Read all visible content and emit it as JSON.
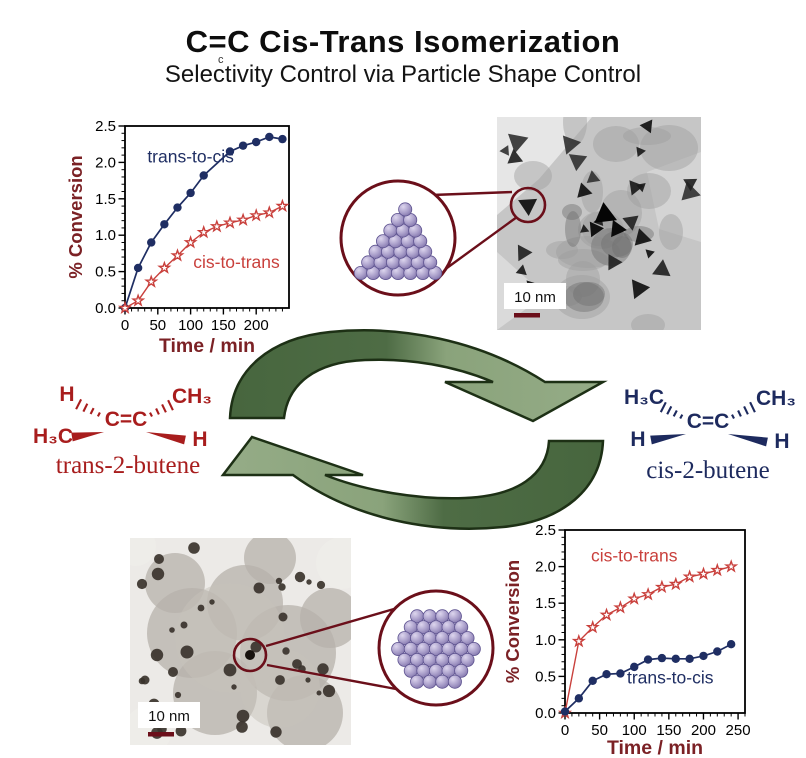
{
  "header": {
    "title": "C=C Cis-Trans Isomerization",
    "subtitle": "Selectivity Control via Particle Shape Control",
    "subtitle_mark": "c"
  },
  "colors": {
    "axis_label": "#7b2125",
    "navy": "#1f2e63",
    "red": "#c9403c",
    "molecule_red": "#a81d1d",
    "molecule_navy": "#1d2a5e",
    "magnifier": "#6b0f1a",
    "arrow_dark": "#47663e",
    "arrow_light": "#95ac87",
    "arrow_outline": "#1d3015",
    "sphere_fill": "#a89dc9",
    "sphere_edge": "#5e5390"
  },
  "molecules": {
    "trans": {
      "name": "trans-2-butene",
      "atoms": {
        "top_left": "H",
        "bottom_left": "H₃C",
        "center": "C=C",
        "top_right": "CH₃",
        "bottom_right": "H"
      }
    },
    "cis": {
      "name": "cis-2-butene",
      "atoms": {
        "top_left": "H₃C",
        "bottom_left": "H",
        "center": "C=C",
        "top_right": "CH₃",
        "bottom_right": "H"
      }
    }
  },
  "tem_images": [
    {
      "position": "top-right",
      "scale_label": "10 nm",
      "particles": "triangular"
    },
    {
      "position": "bottom-left",
      "scale_label": "10 nm",
      "particles": "spherical"
    }
  ],
  "nanoparticle_models": [
    {
      "position": "top",
      "shape": "tetrahedron"
    },
    {
      "position": "bottom",
      "shape": "sphere"
    }
  ],
  "chart_data": [
    {
      "type": "line",
      "position": "top-left",
      "xlabel": "Time / min",
      "ylabel": "% Conversion",
      "xlim": [
        0,
        250
      ],
      "ylim": [
        0,
        2.5
      ],
      "xticks": [
        0,
        50,
        100,
        150,
        200
      ],
      "yticks": [
        0.0,
        0.5,
        1.0,
        1.5,
        2.0,
        2.5
      ],
      "x_minor_step": 10,
      "y_minor_step": 0.1,
      "grid": false,
      "series": [
        {
          "name": "trans-to-cis",
          "marker": "circle",
          "color": "#1f2e63",
          "x": [
            0,
            20,
            40,
            60,
            80,
            100,
            120,
            160,
            180,
            200,
            220,
            240
          ],
          "y": [
            0,
            0.55,
            0.9,
            1.15,
            1.38,
            1.58,
            1.82,
            2.15,
            2.23,
            2.28,
            2.35,
            2.32
          ],
          "label_at": [
            100,
            2.0
          ]
        },
        {
          "name": "cis-to-trans",
          "marker": "star",
          "color": "#c9403c",
          "x": [
            0,
            20,
            40,
            60,
            80,
            100,
            120,
            140,
            160,
            180,
            200,
            220,
            240
          ],
          "y": [
            0,
            0.1,
            0.36,
            0.55,
            0.72,
            0.9,
            1.04,
            1.12,
            1.17,
            1.21,
            1.27,
            1.31,
            1.4
          ],
          "label_at": [
            170,
            0.55
          ]
        }
      ]
    },
    {
      "type": "line",
      "position": "bottom-right",
      "xlabel": "Time / min",
      "ylabel": "% Conversion",
      "xlim": [
        0,
        260
      ],
      "ylim": [
        0,
        2.5
      ],
      "xticks": [
        0,
        50,
        100,
        150,
        200,
        250
      ],
      "yticks": [
        0.0,
        0.5,
        1.0,
        1.5,
        2.0,
        2.5
      ],
      "x_minor_step": 10,
      "y_minor_step": 0.1,
      "grid": false,
      "series": [
        {
          "name": "cis-to-trans",
          "marker": "star",
          "color": "#c9403c",
          "x": [
            0,
            20,
            40,
            60,
            80,
            100,
            120,
            140,
            160,
            180,
            200,
            220,
            240
          ],
          "y": [
            0,
            0.98,
            1.17,
            1.34,
            1.44,
            1.56,
            1.62,
            1.72,
            1.76,
            1.86,
            1.9,
            1.95,
            2.0
          ],
          "label_at": [
            100,
            2.07
          ]
        },
        {
          "name": "trans-to-cis",
          "marker": "circle",
          "color": "#1f2e63",
          "x": [
            0,
            20,
            40,
            60,
            80,
            100,
            120,
            140,
            160,
            180,
            200,
            220,
            240
          ],
          "y": [
            0.02,
            0.2,
            0.44,
            0.53,
            0.54,
            0.63,
            0.73,
            0.75,
            0.74,
            0.74,
            0.78,
            0.84,
            0.94
          ],
          "label_at": [
            152,
            0.4
          ]
        }
      ]
    }
  ]
}
